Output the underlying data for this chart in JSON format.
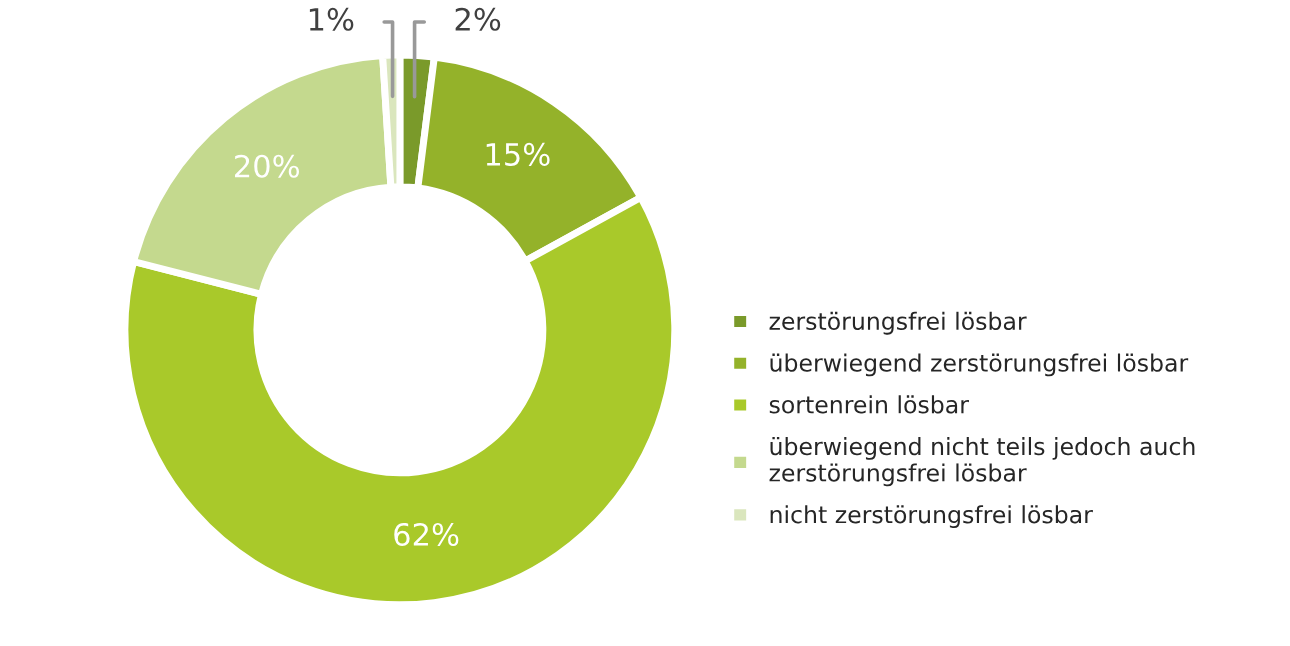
{
  "chart_data": {
    "type": "donut",
    "categories": [
      "zerstörungsfrei lösbar",
      "überwiegend zerstörungsfrei lösbar",
      "sortenrein lösbar",
      "überwiegend nicht teils jedoch auch zerstörungsfrei lösbar",
      "nicht zerstörungsfrei lösbar"
    ],
    "values": [
      2,
      15,
      62,
      20,
      1
    ],
    "value_labels": [
      "2%",
      "15%",
      "62%",
      "20%",
      "1%"
    ],
    "colors": [
      "#7a9a2a",
      "#94b22a",
      "#a9c92a",
      "#c4d98e",
      "#dae6bd"
    ],
    "legend": "right"
  }
}
